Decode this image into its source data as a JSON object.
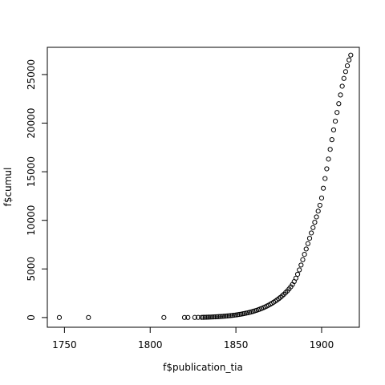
{
  "chart_data": {
    "type": "scatter",
    "title": "",
    "xlabel": "f$publication_tia",
    "ylabel": "f$cumul",
    "xlim": [
      1740,
      1922
    ],
    "ylim": [
      -1000,
      27800
    ],
    "xticks": [
      1750,
      1800,
      1850,
      1900
    ],
    "yticks": [
      0,
      5000,
      10000,
      15000,
      20000,
      25000
    ],
    "grid": false,
    "legend": "none",
    "point_style": "open-circle",
    "series": [
      {
        "x": [
          1747,
          1764,
          1808,
          1820,
          1822,
          1826,
          1828,
          1830,
          1831,
          1832,
          1833,
          1834,
          1835,
          1836,
          1837,
          1838,
          1839,
          1840,
          1841,
          1842,
          1843,
          1844,
          1845,
          1846,
          1847,
          1848,
          1849,
          1850,
          1851,
          1852,
          1853,
          1854,
          1855,
          1856,
          1857,
          1858,
          1859,
          1860,
          1861,
          1862,
          1863,
          1864,
          1865,
          1866,
          1867,
          1868,
          1869,
          1870,
          1871,
          1872,
          1873,
          1874,
          1875,
          1876,
          1877,
          1878,
          1879,
          1880,
          1881,
          1882,
          1883,
          1884,
          1885,
          1886,
          1887,
          1888,
          1889,
          1890,
          1891,
          1892,
          1893,
          1894,
          1895,
          1896,
          1897,
          1898,
          1899,
          1900,
          1901,
          1902,
          1903,
          1904,
          1905,
          1906,
          1907,
          1908,
          1909,
          1910,
          1911,
          1912,
          1913,
          1914,
          1915,
          1916,
          1917
        ],
        "y": [
          1,
          2,
          3,
          5,
          7,
          10,
          14,
          18,
          23,
          28,
          34,
          40,
          47,
          55,
          63,
          72,
          82,
          93,
          105,
          118,
          132,
          147,
          163,
          180,
          198,
          218,
          240,
          264,
          290,
          318,
          348,
          380,
          415,
          452,
          492,
          535,
          580,
          630,
          683,
          740,
          800,
          865,
          935,
          1010,
          1090,
          1175,
          1265,
          1360,
          1460,
          1570,
          1685,
          1810,
          1940,
          2080,
          2230,
          2390,
          2560,
          2740,
          2940,
          3160,
          3400,
          3700,
          4050,
          4450,
          4900,
          5400,
          5950,
          6500,
          7050,
          7600,
          8150,
          8700,
          9250,
          9800,
          10350,
          10950,
          11550,
          12300,
          13300,
          14300,
          15300,
          16300,
          17300,
          18300,
          19300,
          20200,
          21100,
          22000,
          22900,
          23800,
          24600,
          25300,
          25900,
          26500,
          27000
        ]
      }
    ]
  }
}
